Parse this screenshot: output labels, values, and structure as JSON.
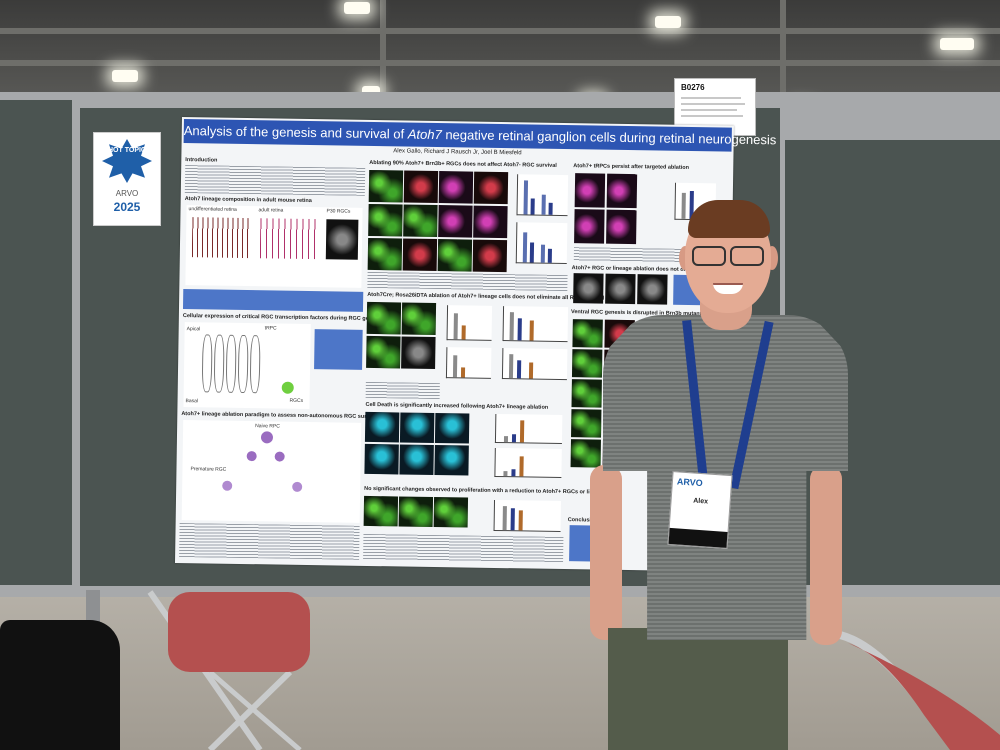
{
  "poster": {
    "title_prefix": "Analysis of the genesis and survival of",
    "title_gene": "Atoh7",
    "title_suffix": "negative retinal ganglion cells during retinal neurogenesis",
    "authors": "Alex Gallo, Richard J Rausch Jr, Joel B Miesfeld",
    "sections": {
      "intro": "Introduction",
      "lineage": "Atoh7 lineage composition in adult mouse retina",
      "ablating": "Ablating 90% Atoh7+ Brn3b+ RGCs does not affect Atoh7- RGC survival",
      "persist": "Atoh7+ tRPCs persist after targeted ablation",
      "cellular": "Cellular expression of critical RGC transcription factors during RGC genesis",
      "rosa": "Atoh7Cre; Rosa26iDTA ablation of Atoh7+ lineage cells does not eliminate all RGC survival",
      "rgc_lineage": "Atoh7+ RGC or lineage ablation does not disrupt optic...",
      "ventral": "Ventral RGC genesis is disrupted in Brn3b mutants",
      "paradigm": "Atoh7+ lineage ablation paradigm to assess non-autonomous RGC survival",
      "cell_death": "Cell Death is significantly increased following Atoh7+ lineage ablation",
      "prolif": "No significant changes observed to proliferation with a reduction to Atoh7+ RGCs or lineage",
      "conclusions": "Conclusions"
    },
    "diagram_labels": {
      "undiff": "undifferentiated retina",
      "adult": "adult retina",
      "p30": "P30 RGCs",
      "apical": "Apical",
      "basal": "Basal",
      "trpc": "tRPC",
      "rgcs": "RGCs",
      "naive": "Naive RPC",
      "premature": "Premature RGC"
    }
  },
  "badge": {
    "hot_topic": "HOT TOPIC",
    "org": "ARVO",
    "year": "2025"
  },
  "board_number": "B0276",
  "name_badge": {
    "org": "ARVO",
    "name": "Alex"
  },
  "colors": {
    "poster_title_bar": "#2d55b3",
    "board_panel": "#4b5451",
    "lanyard": "#1f3e8f",
    "chair_seat": "#b4504f"
  }
}
